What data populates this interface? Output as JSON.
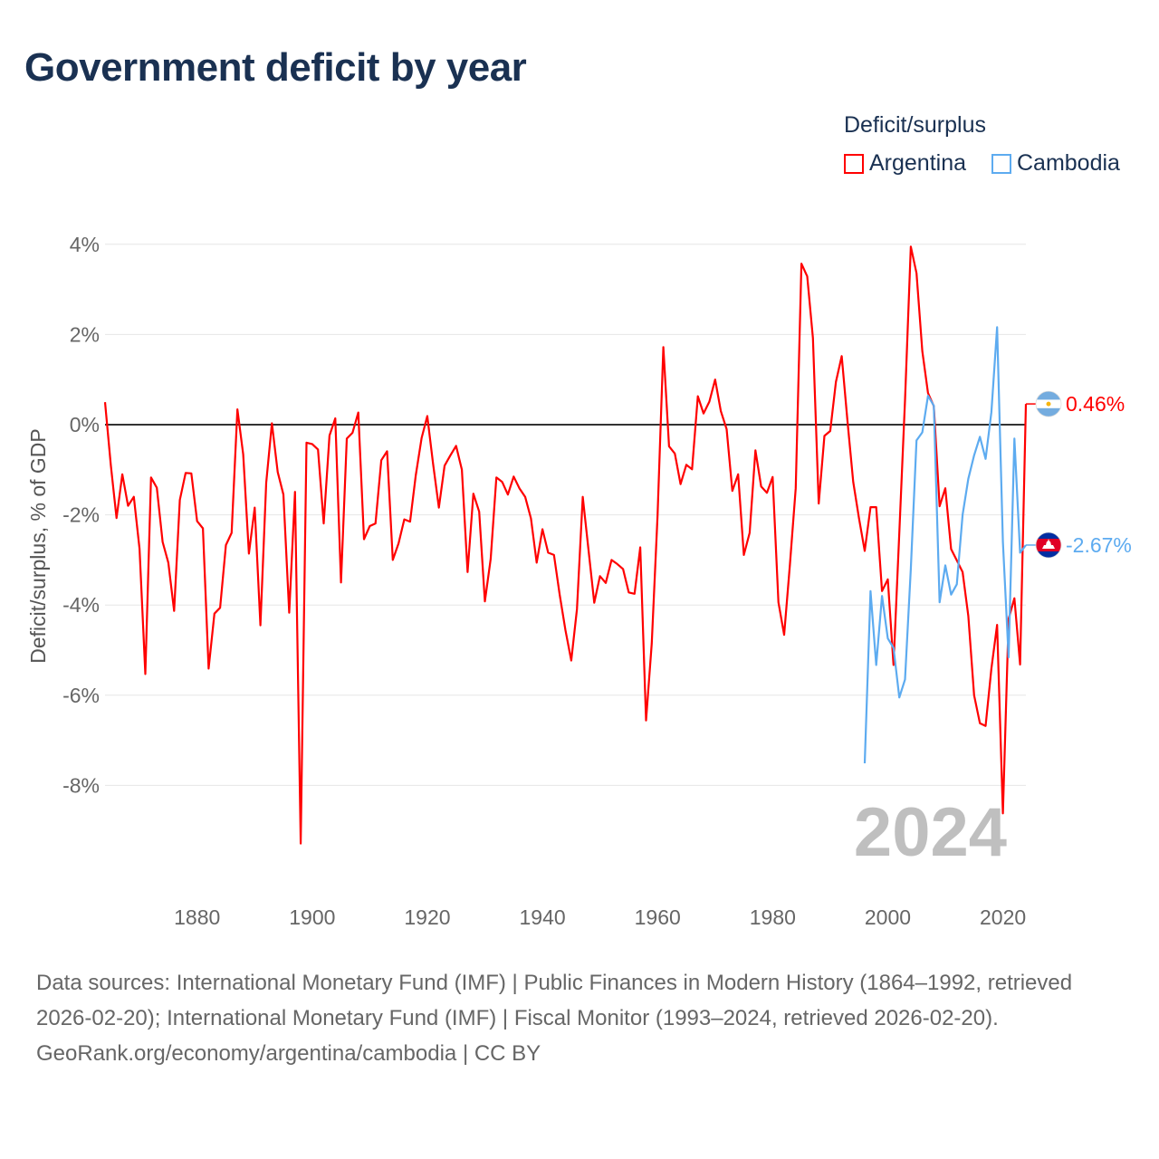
{
  "title": "Government deficit by year",
  "legend": {
    "title": "Deficit/surplus",
    "items": [
      {
        "label": "Argentina",
        "color": "#ff0000"
      },
      {
        "label": "Cambodia",
        "color": "#5dabf0"
      }
    ]
  },
  "year_watermark": "2024",
  "end_labels": {
    "argentina": "0.46%",
    "cambodia": "-2.67%"
  },
  "footer": {
    "sources": "Data sources: International Monetary Fund (IMF) | Public Finances in Modern History (1864–1992, retrieved 2026-02-20); International Monetary Fund (IMF) | Fiscal Monitor (1993–2024, retrieved 2026-02-20).",
    "credit": "GeoRank.org/economy/argentina/cambodia | CC BY"
  },
  "chart_data": {
    "type": "line",
    "title": "Government deficit by year",
    "xlabel": "",
    "ylabel": "Deficit/surplus, % of GDP",
    "xlim": [
      1864,
      2024
    ],
    "ylim": [
      -10,
      4.3
    ],
    "x_ticks": [
      1880,
      1900,
      1920,
      1940,
      1960,
      1980,
      2000,
      2020
    ],
    "x_tick_labels": [
      "1880",
      "1900",
      "1920",
      "1940",
      "1960",
      "1980",
      "2000",
      "2020"
    ],
    "y_ticks": [
      4,
      2,
      0,
      -2,
      -4,
      -6,
      -8
    ],
    "y_tick_labels": [
      "4%",
      "2%",
      "0%",
      "-2%",
      "-4%",
      "-6%",
      "-8%"
    ],
    "grid": true,
    "legend_position": "top-right",
    "series": [
      {
        "name": "Argentina",
        "color": "#ff0000",
        "start_year": 1864,
        "values": [
          0.5,
          -0.9,
          -2.07,
          -1.1,
          -1.8,
          -1.6,
          -2.75,
          -5.53,
          -1.17,
          -1.4,
          -2.6,
          -3.06,
          -4.13,
          -1.67,
          -1.07,
          -1.08,
          -2.14,
          -2.3,
          -5.41,
          -4.19,
          -4.06,
          -2.67,
          -2.4,
          0.34,
          -0.66,
          -2.86,
          -1.84,
          -4.45,
          -1.29,
          0.03,
          -1.05,
          -1.55,
          -4.17,
          -1.49,
          -9.29,
          -0.4,
          -0.43,
          -0.55,
          -2.19,
          -0.24,
          0.14,
          -3.5,
          -0.31,
          -0.18,
          0.27,
          -2.54,
          -2.25,
          -2.19,
          -0.79,
          -0.59,
          -3.0,
          -2.63,
          -2.1,
          -2.15,
          -1.12,
          -0.3,
          0.19,
          -0.87,
          -1.84,
          -0.91,
          -0.68,
          -0.47,
          -1.0,
          -3.27,
          -1.53,
          -1.93,
          -3.92,
          -2.98,
          -1.17,
          -1.27,
          -1.55,
          -1.15,
          -1.41,
          -1.6,
          -2.08,
          -3.06,
          -2.32,
          -2.84,
          -2.89,
          -3.77,
          -4.56,
          -5.23,
          -4.09,
          -1.6,
          -2.77,
          -3.95,
          -3.36,
          -3.51,
          -3.0,
          -3.09,
          -3.2,
          -3.72,
          -3.75,
          -2.72,
          -6.56,
          -4.85,
          -2.02,
          1.72,
          -0.48,
          -0.64,
          -1.32,
          -0.89,
          -0.99,
          0.63,
          0.25,
          0.51,
          1.0,
          0.3,
          -0.1,
          -1.47,
          -1.1,
          -2.89,
          -2.4,
          -0.57,
          -1.37,
          -1.51,
          -1.16,
          -3.94,
          -4.66,
          -3.1,
          -1.41,
          3.57,
          3.29,
          1.92,
          -1.75,
          -0.25,
          -0.14,
          0.95,
          1.52,
          0.07,
          -1.27,
          -2.08,
          -2.8,
          -1.83,
          -1.83,
          -3.69,
          -3.43,
          -5.33,
          -2.4,
          0.54,
          3.95,
          3.36,
          1.63,
          0.7,
          0.41,
          -1.81,
          -1.41,
          -2.76,
          -3.01,
          -3.27,
          -4.24,
          -6.0,
          -6.62,
          -6.68,
          -5.41,
          -4.44,
          -8.62,
          -4.31,
          -3.85,
          -5.32,
          0.46
        ]
      },
      {
        "name": "Cambodia",
        "color": "#5dabf0",
        "start_year": 1996,
        "values": [
          -7.51,
          -3.69,
          -5.33,
          -3.8,
          -4.74,
          -4.95,
          -6.05,
          -5.65,
          -3.2,
          -0.35,
          -0.17,
          0.64,
          0.42,
          -3.94,
          -3.12,
          -3.77,
          -3.54,
          -2.0,
          -1.2,
          -0.68,
          -0.27,
          -0.76,
          0.28,
          2.16,
          -2.6,
          -5.16,
          -0.31,
          -2.84,
          -2.67
        ]
      }
    ]
  }
}
